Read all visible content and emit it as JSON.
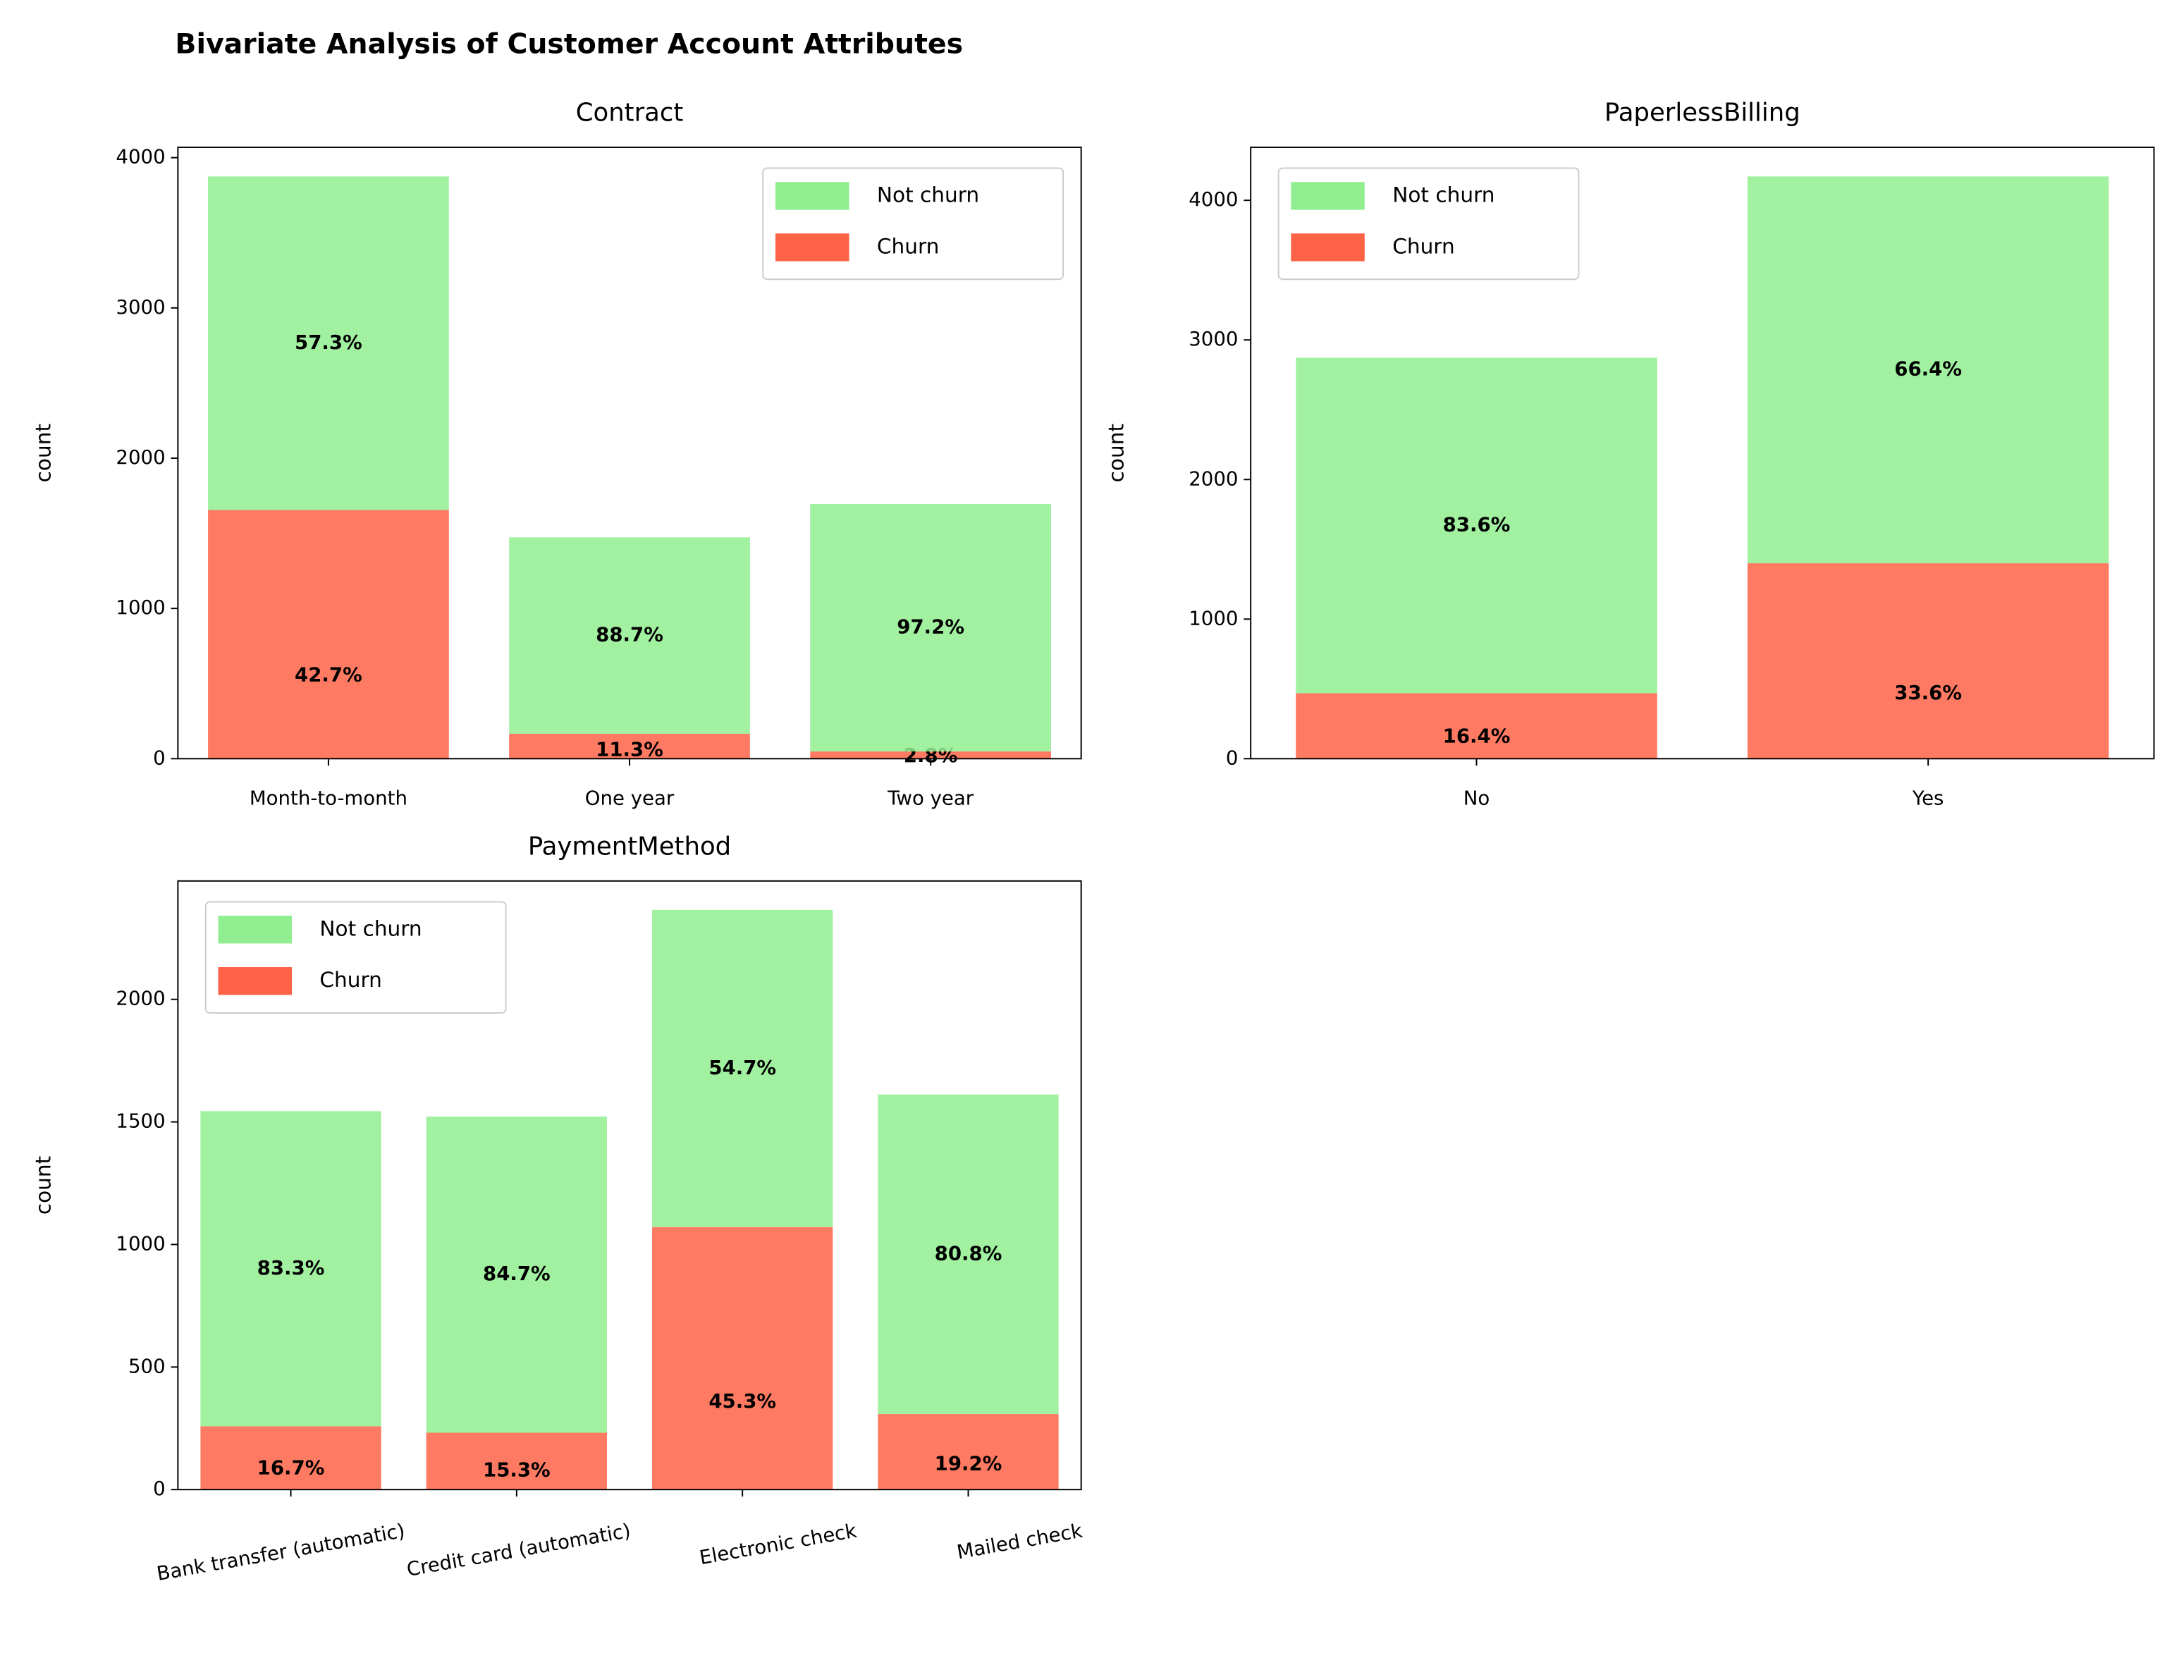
{
  "title": "Bivariate Analysis of Customer Account Attributes",
  "chart_data": [
    {
      "type": "bar",
      "stacked": true,
      "title": "Contract",
      "ylabel": "count",
      "categories": [
        "Month-to-month",
        "One year",
        "Two year"
      ],
      "series": [
        {
          "name": "Not churn",
          "color": "#90ee90",
          "values": [
            2220,
            1307,
            1647
          ],
          "labels": [
            "57.3%",
            "88.7%",
            "97.2%"
          ]
        },
        {
          "name": "Churn",
          "color": "#ff6347",
          "values": [
            1655,
            166,
            48
          ],
          "labels": [
            "42.7%",
            "11.3%",
            "2.8%"
          ]
        }
      ],
      "ylim": [
        0,
        4069
      ],
      "yticks": [
        0,
        1000,
        2000,
        3000,
        4000
      ],
      "legend": "upper right",
      "xtick_rotation": 0
    },
    {
      "type": "bar",
      "stacked": true,
      "title": "PaperlessBilling",
      "ylabel": "count",
      "categories": [
        "No",
        "Yes"
      ],
      "series": [
        {
          "name": "Not churn",
          "color": "#90ee90",
          "values": [
            2403,
            2771
          ],
          "labels": [
            "83.6%",
            "66.4%"
          ]
        },
        {
          "name": "Churn",
          "color": "#ff6347",
          "values": [
            469,
            1400
          ],
          "labels": [
            "16.4%",
            "33.6%"
          ]
        }
      ],
      "ylim": [
        0,
        4380
      ],
      "yticks": [
        0,
        1000,
        2000,
        3000,
        4000
      ],
      "legend": "upper left",
      "xtick_rotation": 0
    },
    {
      "type": "bar",
      "stacked": true,
      "title": "PaymentMethod",
      "ylabel": "count",
      "categories": [
        "Bank transfer (automatic)",
        "Credit card (automatic)",
        "Electronic check",
        "Mailed check"
      ],
      "series": [
        {
          "name": "Not churn",
          "color": "#90ee90",
          "values": [
            1286,
            1290,
            1294,
            1304
          ],
          "labels": [
            "83.3%",
            "84.7%",
            "54.7%",
            "80.8%"
          ]
        },
        {
          "name": "Churn",
          "color": "#ff6347",
          "values": [
            258,
            232,
            1071,
            308
          ],
          "labels": [
            "16.7%",
            "15.3%",
            "45.3%",
            "19.2%"
          ]
        }
      ],
      "ylim": [
        0,
        2483
      ],
      "yticks": [
        0,
        500,
        1000,
        1500,
        2000
      ],
      "legend": "upper left",
      "xtick_rotation": -10
    }
  ]
}
